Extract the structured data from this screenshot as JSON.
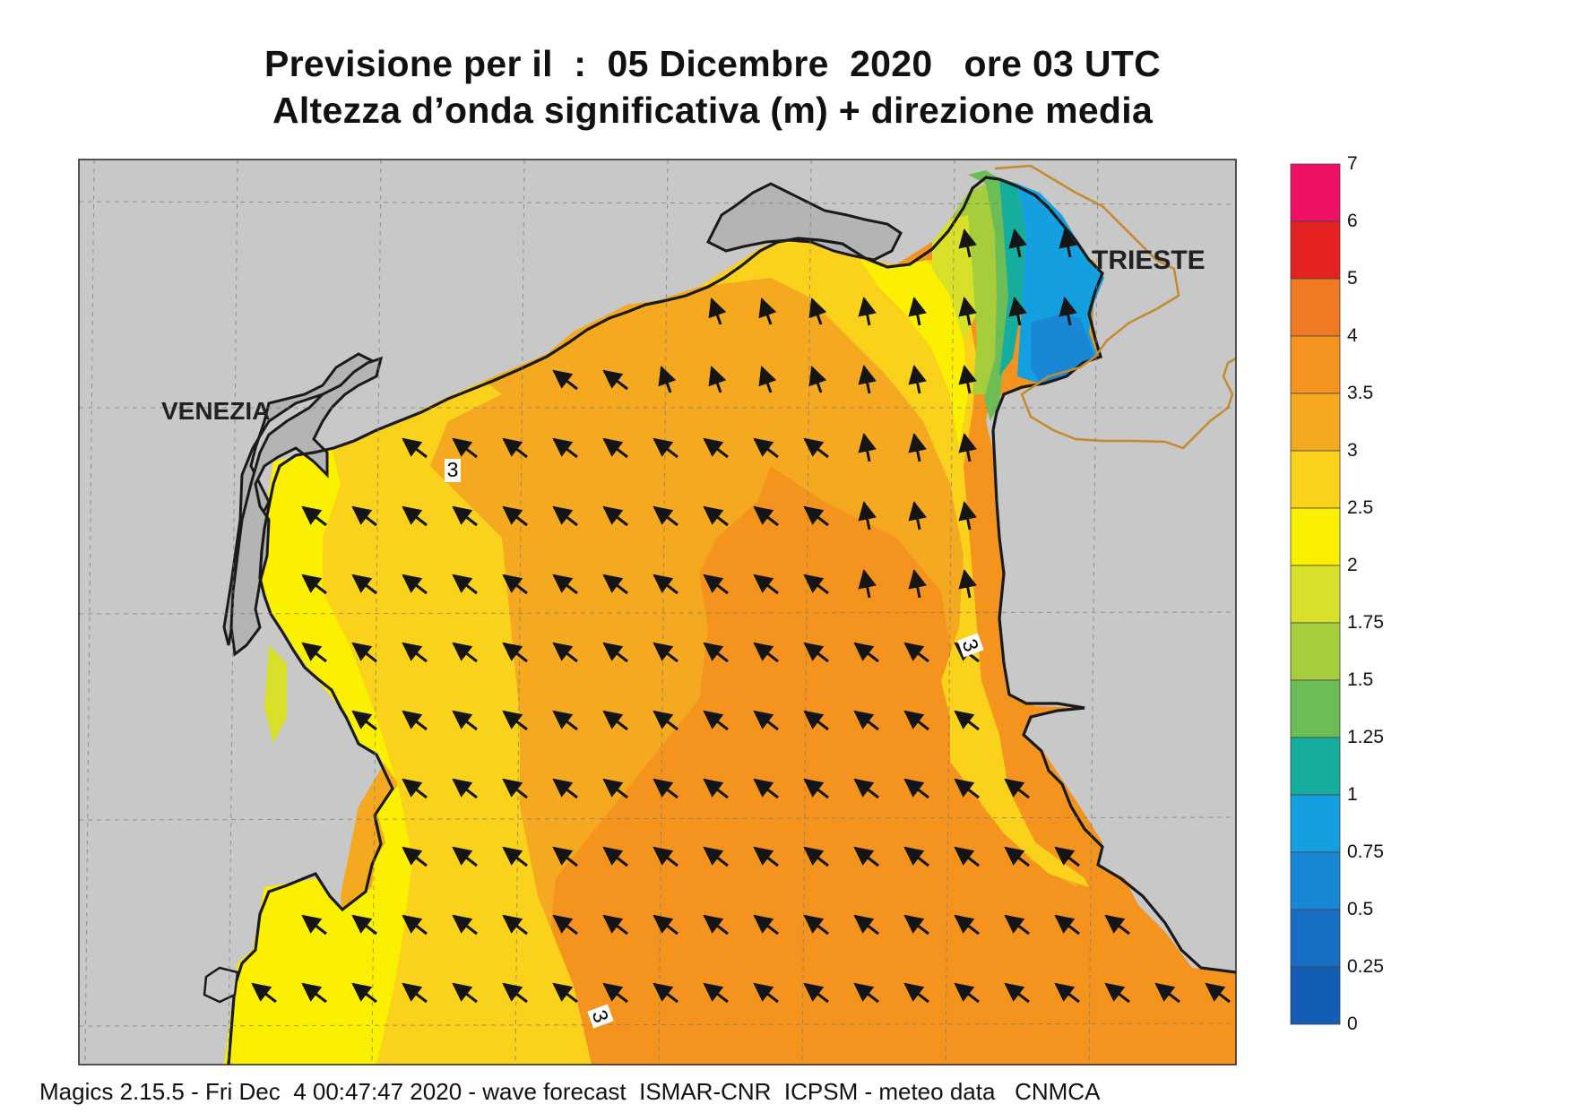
{
  "title": {
    "line1": "Previsione per il  :  05 Dicembre  2020   ore 03 UTC",
    "line2": "Altezza d’onda significativa (m) + direzione media"
  },
  "places": {
    "venezia": "VENEZIA",
    "trieste": "TRIESTE"
  },
  "contour_labels": [
    "3",
    "3",
    "3"
  ],
  "footer": "Magics 2.15.5 - Fri Dec  4 00:47:47 2020 - wave forecast  ISMAR-CNR  ICPSM - meteo data   CNMCA",
  "legend": {
    "ticks": [
      "7",
      "6",
      "5",
      "4",
      "3.5",
      "3",
      "2.5",
      "2",
      "1.75",
      "1.5",
      "1.25",
      "1",
      "0.75",
      "0.5",
      "0.25",
      "0"
    ],
    "colors": [
      "#ee1166",
      "#e52222",
      "#f07a22",
      "#f4941f",
      "#f4a920",
      "#fad21c",
      "#fbf000",
      "#d8e02a",
      "#a6cd3c",
      "#6cbd55",
      "#14ad9e",
      "#14a0e0",
      "#1a86d6",
      "#176ec4",
      "#145db5"
    ]
  },
  "colors": {
    "land": "#c8c8c8",
    "lagoon": "#b4b4b4",
    "border": "#c48a2e",
    "coast": "#1a1a1a"
  }
}
